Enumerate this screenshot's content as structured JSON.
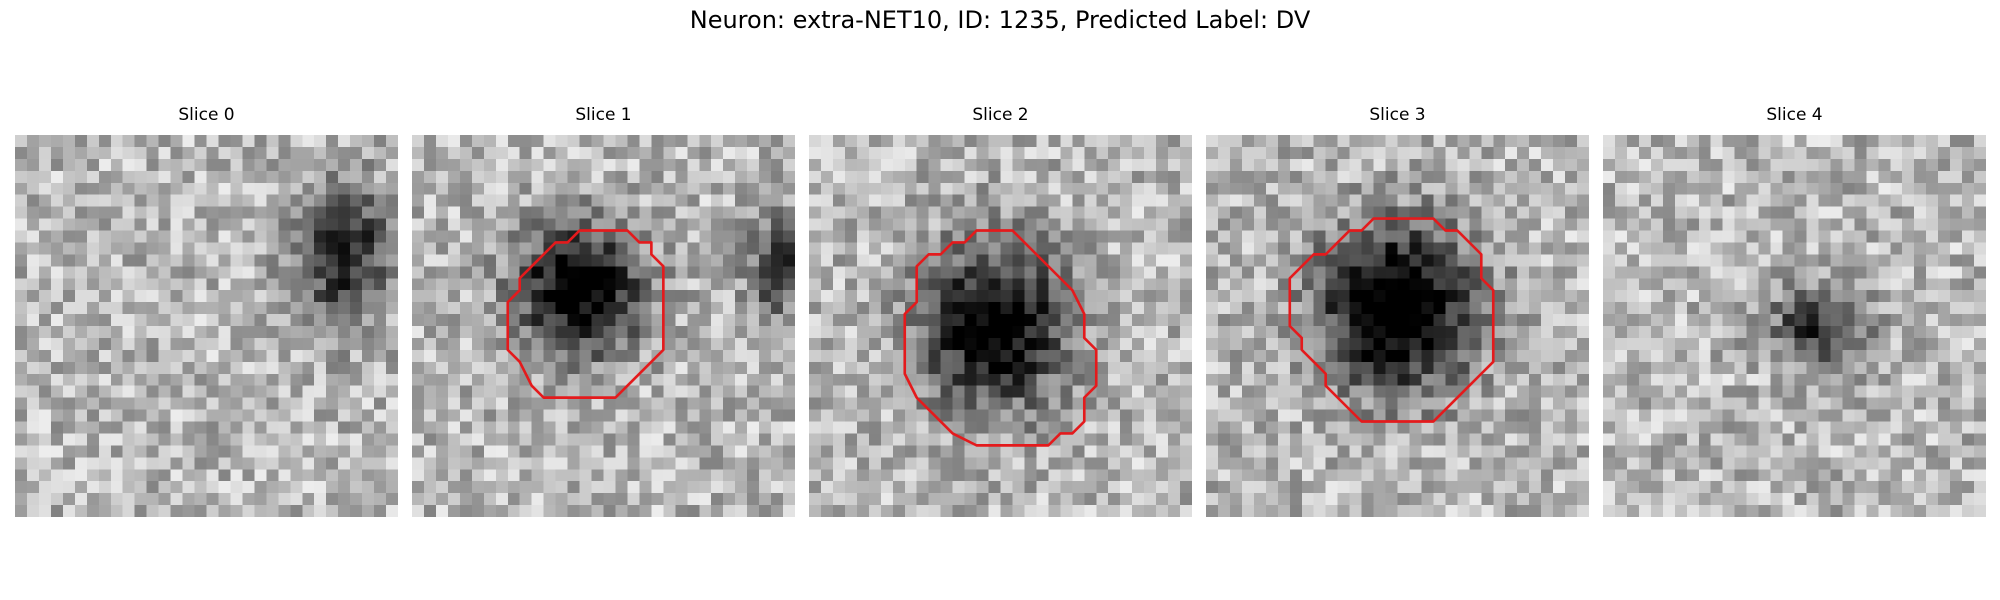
{
  "figure": {
    "title": "Neuron: extra-NET10, ID: 1235, Predicted Label: DV",
    "contour_color": "#e41a1c",
    "grid_size": 32,
    "panels": [
      {
        "title": "Slice 0",
        "blobs": [
          {
            "cx": 27.5,
            "cy": 10.0,
            "rx": 5.0,
            "ry": 7.0,
            "depth": 0.6
          }
        ],
        "contour": null
      },
      {
        "title": "Slice 1",
        "blobs": [
          {
            "cx": 14.0,
            "cy": 13.0,
            "rx": 6.5,
            "ry": 6.5,
            "depth": 0.85
          },
          {
            "cx": 30.5,
            "cy": 11.0,
            "rx": 3.0,
            "ry": 5.0,
            "depth": 0.55
          }
        ],
        "contour": [
          [
            16,
            8
          ],
          [
            18,
            8
          ],
          [
            19,
            9
          ],
          [
            20,
            9
          ],
          [
            20,
            10
          ],
          [
            21,
            11
          ],
          [
            21,
            18
          ],
          [
            20,
            19
          ],
          [
            18,
            21
          ],
          [
            17,
            22
          ],
          [
            14,
            22
          ],
          [
            11,
            22
          ],
          [
            10,
            21
          ],
          [
            9,
            19
          ],
          [
            8,
            18
          ],
          [
            8,
            14
          ],
          [
            9,
            13
          ],
          [
            9,
            12
          ],
          [
            10,
            11
          ],
          [
            11,
            10
          ],
          [
            12,
            9
          ],
          [
            13,
            9
          ],
          [
            14,
            8
          ]
        ]
      },
      {
        "title": "Slice 2",
        "blobs": [
          {
            "cx": 15.5,
            "cy": 16.0,
            "rx": 7.5,
            "ry": 8.5,
            "depth": 0.8
          }
        ],
        "contour": [
          [
            14,
            8
          ],
          [
            17,
            8
          ],
          [
            19,
            10
          ],
          [
            21,
            12
          ],
          [
            22,
            13
          ],
          [
            23,
            15
          ],
          [
            23,
            17
          ],
          [
            24,
            18
          ],
          [
            24,
            21
          ],
          [
            23,
            22
          ],
          [
            23,
            24
          ],
          [
            22,
            25
          ],
          [
            21,
            25
          ],
          [
            20,
            26
          ],
          [
            14,
            26
          ],
          [
            12,
            25
          ],
          [
            10,
            23
          ],
          [
            9,
            22
          ],
          [
            8,
            20
          ],
          [
            8,
            15
          ],
          [
            9,
            14
          ],
          [
            9,
            11
          ],
          [
            10,
            10
          ],
          [
            11,
            10
          ],
          [
            12,
            9
          ],
          [
            13,
            9
          ]
        ]
      },
      {
        "title": "Slice 3",
        "blobs": [
          {
            "cx": 16.0,
            "cy": 14.5,
            "rx": 8.0,
            "ry": 8.5,
            "depth": 0.9
          }
        ],
        "contour": [
          [
            14,
            7
          ],
          [
            19,
            7
          ],
          [
            20,
            8
          ],
          [
            21,
            8
          ],
          [
            23,
            10
          ],
          [
            23,
            12
          ],
          [
            24,
            13
          ],
          [
            24,
            19
          ],
          [
            23,
            20
          ],
          [
            22,
            21
          ],
          [
            20,
            23
          ],
          [
            19,
            24
          ],
          [
            16,
            24
          ],
          [
            13,
            24
          ],
          [
            11,
            22
          ],
          [
            10,
            21
          ],
          [
            10,
            20
          ],
          [
            9,
            19
          ],
          [
            8,
            18
          ],
          [
            8,
            17
          ],
          [
            7,
            16
          ],
          [
            7,
            15
          ],
          [
            7,
            12
          ],
          [
            8,
            11
          ],
          [
            9,
            10
          ],
          [
            10,
            10
          ],
          [
            11,
            9
          ],
          [
            12,
            8
          ],
          [
            13,
            8
          ]
        ]
      },
      {
        "title": "Slice 4",
        "blobs": [
          {
            "cx": 18.0,
            "cy": 16.0,
            "rx": 5.0,
            "ry": 4.0,
            "depth": 0.55
          }
        ],
        "contour": null
      }
    ]
  }
}
